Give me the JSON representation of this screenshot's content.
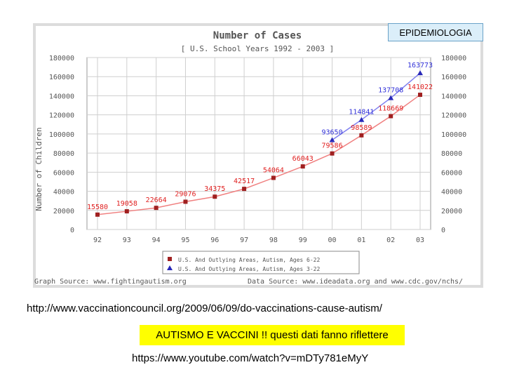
{
  "badge": "EPIDEMIOLOGIA",
  "source_url": "http://www.vaccinationcouncil.org/2009/06/09/do-vaccinations-cause-autism/",
  "highlight": "AUTISMO E VACCINI !! questi dati fanno riflettere",
  "video_url": "https://www.youtube.com/watch?v=mDTy781eMyY",
  "colors": {
    "series1": "#e02020",
    "series2": "#3030d8",
    "accent": "#ffff00"
  },
  "chart_data": {
    "type": "line",
    "title": "Number of Cases",
    "subtitle": "[ U.S. School Years 1992 - 2003 ]",
    "xlabel": "",
    "ylabel": "Number of Children",
    "categories": [
      "92",
      "93",
      "94",
      "95",
      "96",
      "97",
      "98",
      "99",
      "00",
      "01",
      "02",
      "03"
    ],
    "ylim": [
      0,
      180000
    ],
    "yticks": [
      0,
      20000,
      40000,
      60000,
      80000,
      100000,
      120000,
      140000,
      160000,
      180000
    ],
    "series": [
      {
        "name": "U.S. And Outlying Areas, Autism, Ages 6-22",
        "color": "#e02020",
        "marker": "square",
        "values": [
          15580,
          19058,
          22664,
          29076,
          34375,
          42517,
          54064,
          66043,
          79586,
          98589,
          118669,
          141022
        ]
      },
      {
        "name": "U.S. And Outlying Areas, Autism, Ages 3-22",
        "color": "#3030d8",
        "marker": "triangle",
        "values": [
          null,
          null,
          null,
          null,
          null,
          null,
          null,
          null,
          93650,
          114841,
          137708,
          163773
        ]
      }
    ],
    "legend": "bottom-center",
    "graph_source": "Graph Source: www.fightingautism.org",
    "data_source": "Data Source: www.ideadata.org and www.cdc.gov/nchs/"
  }
}
